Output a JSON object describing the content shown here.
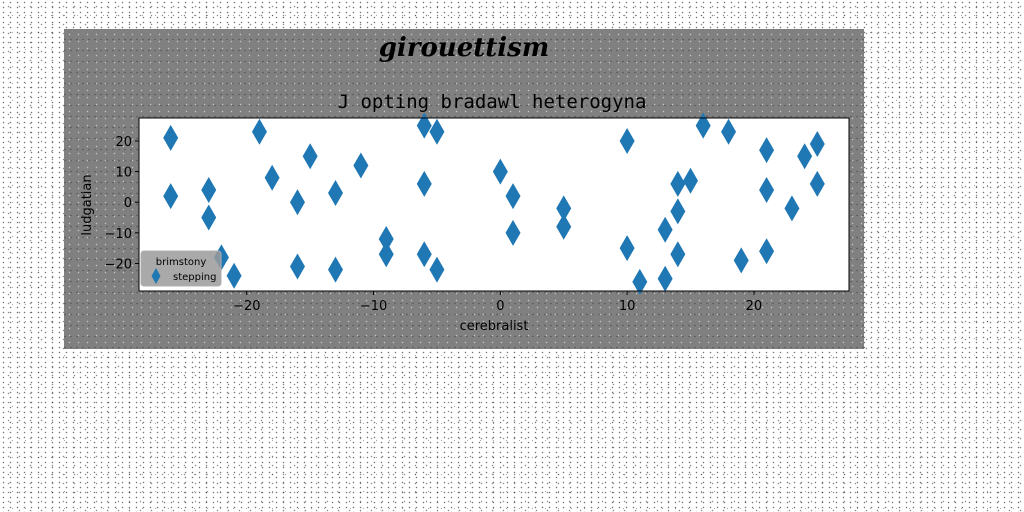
{
  "chart_data": {
    "type": "scatter",
    "suptitle": "girouettism",
    "title": "J opting bradawl heterogyna",
    "xlabel": "cerebralist",
    "ylabel": "ludgatian",
    "xlim": [
      -28.5,
      27.5
    ],
    "ylim": [
      -29,
      27.5
    ],
    "xticks": [
      -20,
      -10,
      0,
      10,
      20
    ],
    "yticks": [
      -20,
      -10,
      0,
      10,
      20
    ],
    "grid": false,
    "marker": "thin_diamond",
    "colors": {
      "series": "#1f77b4",
      "figure_bg": "#808080",
      "axes_bg": "#ffffff"
    },
    "legend": {
      "title": "brimstony",
      "placement": "lower-left"
    },
    "series": [
      {
        "name": "stepping",
        "points": [
          [
            -26,
            21
          ],
          [
            -26,
            2
          ],
          [
            -23,
            4
          ],
          [
            -23,
            -5
          ],
          [
            -22,
            -18
          ],
          [
            -21,
            -24
          ],
          [
            -19,
            23
          ],
          [
            -18,
            8
          ],
          [
            -16,
            0
          ],
          [
            -16,
            -21
          ],
          [
            -15,
            15
          ],
          [
            -13,
            3
          ],
          [
            -13,
            -22
          ],
          [
            -11,
            12
          ],
          [
            -9,
            -12
          ],
          [
            -9,
            -17
          ],
          [
            -6,
            25
          ],
          [
            -6,
            6
          ],
          [
            -6,
            -17
          ],
          [
            -5,
            23
          ],
          [
            -5,
            -22
          ],
          [
            0,
            10
          ],
          [
            1,
            2
          ],
          [
            1,
            -10
          ],
          [
            5,
            -2
          ],
          [
            5,
            -8
          ],
          [
            10,
            20
          ],
          [
            10,
            -15
          ],
          [
            11,
            -26
          ],
          [
            13,
            -9
          ],
          [
            13,
            -25
          ],
          [
            14,
            6
          ],
          [
            14,
            -3
          ],
          [
            14,
            -17
          ],
          [
            15,
            7
          ],
          [
            16,
            25
          ],
          [
            18,
            23
          ],
          [
            19,
            -19
          ],
          [
            21,
            17
          ],
          [
            21,
            4
          ],
          [
            21,
            -16
          ],
          [
            23,
            -2
          ],
          [
            24,
            15
          ],
          [
            25,
            19
          ],
          [
            25,
            6
          ]
        ]
      }
    ]
  }
}
